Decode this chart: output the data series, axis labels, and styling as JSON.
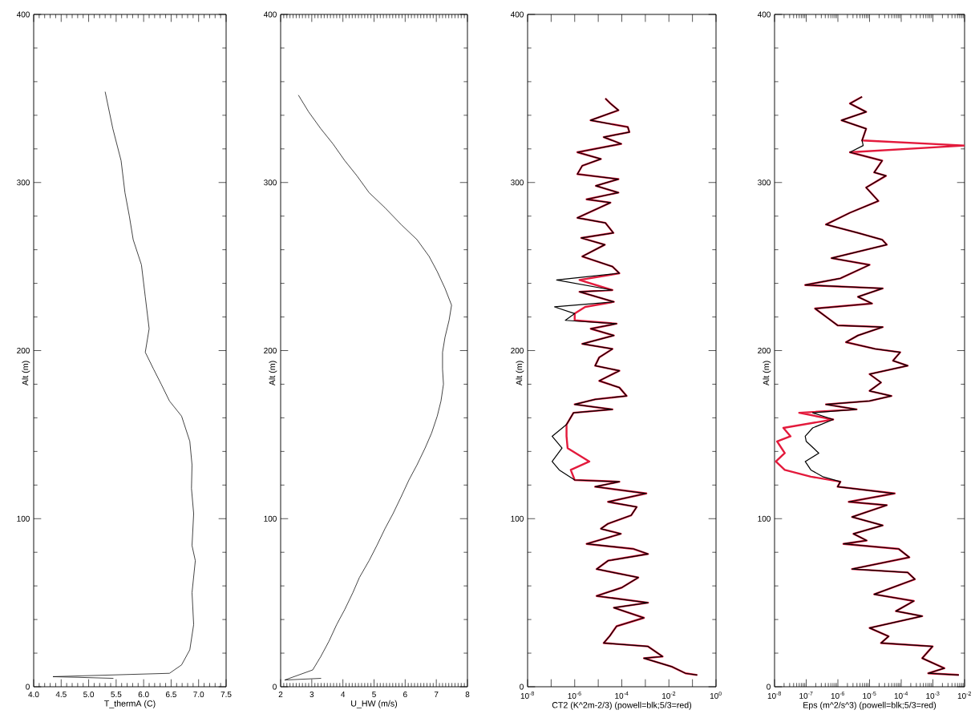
{
  "chart_data": [
    {
      "type": "line",
      "xlabel": "T_thermA (C)",
      "ylabel": "Alt (m)",
      "xlim": [
        4.0,
        7.5
      ],
      "ylim": [
        0,
        400
      ],
      "xticks": [
        {
          "value": 4.0,
          "label": "4.0"
        },
        4.5,
        {
          "value": 5.0,
          "label": "5.0"
        },
        5.5,
        {
          "value": 6.0,
          "label": "6.0"
        },
        6.5,
        {
          "value": 7.0,
          "label": "7.0"
        },
        7.5
      ],
      "yticks": [
        0,
        100,
        200,
        300,
        400
      ],
      "series": [
        {
          "color": "#000000",
          "x": [
            5.3,
            5.44,
            5.59,
            5.66,
            5.74,
            5.81,
            5.96,
            6.03,
            6.1,
            6.03,
            6.18,
            6.32,
            6.47,
            6.69,
            6.84,
            6.88,
            6.87,
            6.91,
            6.88,
            6.94,
            6.88,
            6.91,
            6.84,
            6.69,
            6.47,
            4.35,
            5.45
          ],
          "values": [
            354,
            332,
            313,
            294,
            280,
            266,
            251,
            232,
            213,
            199,
            189,
            180,
            170,
            161,
            146,
            132,
            118,
            103,
            84,
            75,
            56,
            37,
            22,
            13,
            8,
            6,
            5
          ]
        }
      ]
    },
    {
      "type": "line",
      "xlabel": "U_HW (m/s)",
      "ylabel": "Alt (m)",
      "xlim": [
        2,
        8
      ],
      "ylim": [
        0,
        400
      ],
      "xticks": [
        2,
        3,
        4,
        5,
        6,
        7,
        8
      ],
      "yticks": [
        0,
        100,
        200,
        300,
        400
      ],
      "series": [
        {
          "color": "#000000",
          "x": [
            2.57,
            2.9,
            3.29,
            3.68,
            4.06,
            4.45,
            4.84,
            5.35,
            5.87,
            6.38,
            6.77,
            7.03,
            7.28,
            7.49,
            7.41,
            7.28,
            7.2,
            7.2,
            7.23,
            7.15,
            7.03,
            6.85,
            6.64,
            6.38,
            6.12,
            5.87,
            5.61,
            5.35,
            5.09,
            4.84,
            4.53,
            4.32,
            4.06,
            3.8,
            3.55,
            3.29,
            3.03,
            2.13,
            3.3
          ],
          "values": [
            352,
            342,
            332,
            323,
            313,
            304,
            294,
            285,
            275,
            266,
            256,
            247,
            237,
            227,
            218,
            208,
            199,
            189,
            180,
            170,
            161,
            151,
            142,
            132,
            123,
            113,
            103,
            94,
            84,
            75,
            65,
            56,
            46,
            37,
            27,
            18,
            10,
            4,
            5
          ]
        }
      ]
    },
    {
      "type": "line",
      "xlabel": "CT2 (K^2m-2/3) (powell=blk;5/3=red)",
      "ylabel": "Alt (m)",
      "log": "x",
      "xlim": [
        1e-08,
        1
      ],
      "ylim": [
        0,
        400
      ],
      "xticks": [
        {
          "value": 1e-08,
          "label": "10$^{-8}$"
        },
        {
          "value": 1e-07,
          "label": null
        },
        {
          "value": 1e-06,
          "label": "10$^{-6}$"
        },
        {
          "value": 1e-05,
          "label": null
        },
        {
          "value": 0.0001,
          "label": "10$^{-4}$"
        },
        {
          "value": 0.001,
          "label": null
        },
        {
          "value": 0.01,
          "label": "10$^{-2}$"
        },
        {
          "value": 0.1,
          "label": null
        },
        {
          "value": 1,
          "label": "10$^{0}$"
        }
      ],
      "yticks": [
        0,
        100,
        200,
        300,
        400
      ],
      "series": [
        {
          "color": "#000000",
          "x": [
            2e-05,
            3.3e-05,
            7.2e-05,
            4.7e-06,
            0.00018,
            0.00021,
            1.7e-05,
            9.5e-05,
            1.3e-06,
            1.3e-05,
            2.1e-06,
            1.3e-06,
            7.2e-05,
            7.9e-06,
            7.2e-05,
            3.2e-06,
            3.3e-05,
            1.3e-06,
            2e-05,
            4.4e-05,
            1.9e-06,
            1.9e-05,
            2.1e-06,
            4e-05,
            7.9e-05,
            1.7e-07,
            4e-05,
            1.6e-06,
            4.6e-05,
            1.4e-07,
            1e-06,
            4e-07,
            6e-05,
            4.8e-06,
            4.6e-05,
            2.1e-06,
            4e-05,
            1.1e-05,
            7.4e-06,
            7.9e-05,
            1.1e-05,
            7.9e-05,
            0.00016,
            7.4e-06,
            1e-06,
            4e-05,
            8.9e-07,
            4.5e-07,
            1.1e-07,
            2.9e-07,
            1.1e-07,
            2.2e-07,
            1e-06,
            7.9e-05,
            7.4e-06,
            0.0011,
            2.6e-05,
            0.00043,
            0.00025,
            2.6e-05,
            1.3e-05,
            9.1e-05,
            3.2e-06,
            0.00032,
            0.0013,
            2.6e-05,
            8.5e-06,
            0.0005,
            0.0001,
            8.5e-06,
            0.0013,
            4.6e-05,
            0.00087,
            6e-05,
            3e-05,
            1.7e-05,
            0.0013,
            0.0054,
            0.00087,
            0.013,
            0.051,
            0.16
          ],
          "values": [
            350,
            347,
            343,
            337,
            333,
            330,
            327,
            323,
            318,
            314,
            310,
            305,
            302,
            298,
            294,
            290,
            288,
            279,
            276,
            270,
            267,
            263,
            256,
            250,
            246,
            242,
            236,
            235,
            229,
            226,
            222,
            218,
            216,
            213,
            209,
            204,
            201,
            196,
            191,
            188,
            182,
            178,
            173,
            171,
            168,
            165,
            163,
            156,
            149,
            142,
            134,
            129,
            123,
            122,
            119,
            115,
            110,
            107,
            102,
            97,
            94,
            91,
            85,
            82,
            79,
            75,
            70,
            65,
            59,
            54,
            50,
            47,
            41,
            36,
            30,
            26,
            24,
            18,
            17,
            12,
            8,
            7
          ]
        },
        {
          "color": "#e31a3c",
          "x": [
            2e-05,
            3.3e-05,
            7.2e-05,
            4.7e-06,
            0.00018,
            0.00021,
            1.7e-05,
            9.5e-05,
            1.3e-06,
            1.3e-05,
            2.1e-06,
            1.3e-06,
            7.2e-05,
            7.9e-06,
            7.2e-05,
            3.2e-06,
            3.3e-05,
            1.3e-06,
            2e-05,
            4.4e-05,
            1.9e-06,
            1.9e-05,
            2.1e-06,
            4e-05,
            7.9e-05,
            1.6e-06,
            4e-05,
            1.6e-06,
            4.6e-05,
            2.8e-06,
            1e-06,
            1e-06,
            6e-05,
            4.8e-06,
            4.6e-05,
            2.1e-06,
            4e-05,
            1.1e-05,
            7.4e-06,
            7.9e-05,
            1.1e-05,
            7.9e-05,
            0.00016,
            7.4e-06,
            1e-06,
            4e-05,
            8.9e-07,
            4.5e-07,
            4.5e-07,
            5e-07,
            4.2e-06,
            6.8e-07,
            1e-06,
            7.9e-05,
            7.4e-06,
            0.0011,
            2.6e-05,
            0.00043,
            0.00025,
            2.6e-05,
            1.3e-05,
            9.1e-05,
            3.2e-06,
            0.00032,
            0.0013,
            2.6e-05,
            8.5e-06,
            0.0005,
            0.0001,
            8.5e-06,
            0.0013,
            4.6e-05,
            0.00087,
            6e-05,
            3e-05,
            1.7e-05,
            0.0013,
            0.0054,
            0.00087,
            0.013,
            0.051,
            0.16
          ],
          "values": [
            350,
            347,
            343,
            337,
            333,
            330,
            327,
            323,
            318,
            314,
            310,
            305,
            302,
            298,
            294,
            290,
            288,
            279,
            276,
            270,
            267,
            263,
            256,
            250,
            246,
            242,
            236,
            235,
            229,
            226,
            222,
            218,
            216,
            213,
            209,
            204,
            201,
            196,
            191,
            188,
            182,
            178,
            173,
            171,
            168,
            165,
            163,
            156,
            149,
            142,
            134,
            129,
            123,
            122,
            119,
            115,
            110,
            107,
            102,
            97,
            94,
            91,
            85,
            82,
            79,
            75,
            70,
            65,
            59,
            54,
            50,
            47,
            41,
            36,
            30,
            26,
            24,
            18,
            17,
            12,
            8,
            7
          ]
        }
      ]
    },
    {
      "type": "line",
      "xlabel": "Eps (m^2/s^3) (powell=blk;5/3=red)",
      "ylabel": "Alt (m)",
      "log": "x",
      "xlim": [
        1e-08,
        0.01
      ],
      "ylim": [
        0,
        400
      ],
      "xticks": [
        {
          "value": 1e-08,
          "label": "10$^{-8}$"
        },
        {
          "value": 1e-07,
          "label": "10$^{-7}$"
        },
        {
          "value": 1e-06,
          "label": "10$^{-6}$"
        },
        {
          "value": 1e-05,
          "label": "10$^{-5}$"
        },
        {
          "value": 0.0001,
          "label": "10$^{-4}$"
        },
        {
          "value": 0.001,
          "label": "10$^{-3}$"
        },
        {
          "value": 0.01,
          "label": "10$^{-2}$"
        }
      ],
      "yticks": [
        0,
        100,
        200,
        300,
        400
      ],
      "series": [
        {
          "color": "#000000",
          "x": [
            5.8e-06,
            2.4e-06,
            7.8e-06,
            1.3e-06,
            7.8e-06,
            5.8e-06,
            6.3e-06,
            2.4e-06,
            2.5e-05,
            1.4e-05,
            3.3e-05,
            7.8e-06,
            1.9e-05,
            2.4e-06,
            4.2e-07,
            4.3e-06,
            2.5e-05,
            3.5e-05,
            6.3e-07,
            1e-05,
            1.2e-06,
            9.3e-08,
            2.6e-05,
            4.3e-06,
            1.2e-05,
            1.9e-07,
            5.1e-07,
            9.8e-07,
            2.6e-05,
            4.3e-06,
            1.8e-06,
            1.5e-05,
            9.3e-05,
            5.5e-05,
            0.00016,
            1e-05,
            2.3e-05,
            1e-05,
            4.9e-05,
            1e-05,
            4.2e-07,
            3.9e-06,
            1.6e-07,
            7.1e-07,
            1.6e-07,
            9.3e-08,
            1e-07,
            2.5e-07,
            9.3e-08,
            1.4e-07,
            3.3e-07,
            1.2e-06,
            9.8e-07,
            6.2e-05,
            2.2e-06,
            3.5e-05,
            2.8e-06,
            2.6e-05,
            3.1e-06,
            8.1e-06,
            1.5e-06,
            8.3e-05,
            0.00018,
            2.8e-06,
            0.00016,
            0.00027,
            1.4e-05,
            0.00025,
            6.8e-05,
            0.00046,
            1e-05,
            4e-05,
            2.3e-05,
            0.00098,
            0.00046,
            0.0023,
            0.00071,
            0.0066
          ],
          "values": [
            351,
            347,
            342,
            337,
            332,
            325,
            322,
            318,
            313,
            306,
            304,
            297,
            289,
            282,
            275,
            270,
            266,
            263,
            255,
            251,
            243,
            239,
            237,
            232,
            228,
            225,
            219,
            215,
            214,
            209,
            205,
            201,
            199,
            194,
            191,
            186,
            181,
            176,
            173,
            170,
            168,
            165,
            163,
            159,
            154,
            149,
            146,
            139,
            134,
            129,
            125,
            122,
            119,
            115,
            110,
            108,
            101,
            96,
            91,
            87,
            85,
            82,
            77,
            70,
            68,
            64,
            55,
            51,
            45,
            42,
            35,
            30,
            26,
            24,
            17,
            11,
            8,
            7
          ]
        },
        {
          "color": "#e31a3c",
          "x": [
            5.8e-06,
            2.4e-06,
            7.8e-06,
            1.3e-06,
            7.8e-06,
            5.8e-06,
            0.01,
            2.4e-06,
            2.5e-05,
            1.4e-05,
            3.3e-05,
            7.8e-06,
            1.9e-05,
            2.4e-06,
            4.2e-07,
            4.3e-06,
            2.5e-05,
            3.5e-05,
            6.3e-07,
            1e-05,
            1.2e-06,
            9.3e-08,
            2.6e-05,
            4.3e-06,
            1.2e-05,
            1.9e-07,
            5.1e-07,
            9.8e-07,
            2.6e-05,
            4.3e-06,
            1.8e-06,
            1.5e-05,
            9.3e-05,
            5.5e-05,
            0.00016,
            1e-05,
            2.3e-05,
            1e-05,
            4.9e-05,
            1e-05,
            4.2e-07,
            3.9e-06,
            6e-08,
            7.1e-07,
            1.9e-08,
            3.2e-08,
            1.2e-08,
            2.1e-08,
            1.1e-08,
            2.1e-08,
            1.4e-07,
            1.2e-06,
            9.8e-07,
            6.2e-05,
            2.2e-06,
            3.5e-05,
            2.8e-06,
            2.6e-05,
            3.1e-06,
            8.1e-06,
            1.5e-06,
            8.3e-05,
            0.00018,
            2.8e-06,
            0.00016,
            0.00027,
            1.4e-05,
            0.00025,
            6.8e-05,
            0.00046,
            1e-05,
            4e-05,
            2.3e-05,
            0.00098,
            0.00046,
            0.0023,
            0.00071,
            0.0066
          ],
          "values": [
            351,
            347,
            342,
            337,
            332,
            325,
            322,
            318,
            313,
            306,
            304,
            297,
            289,
            282,
            275,
            270,
            266,
            263,
            255,
            251,
            243,
            239,
            237,
            232,
            228,
            225,
            219,
            215,
            214,
            209,
            205,
            201,
            199,
            194,
            191,
            186,
            181,
            176,
            173,
            170,
            168,
            165,
            163,
            159,
            154,
            149,
            146,
            139,
            134,
            129,
            125,
            122,
            119,
            115,
            110,
            108,
            101,
            96,
            91,
            87,
            85,
            82,
            77,
            70,
            68,
            64,
            55,
            51,
            45,
            42,
            35,
            30,
            26,
            24,
            17,
            11,
            8,
            7
          ]
        }
      ]
    }
  ]
}
